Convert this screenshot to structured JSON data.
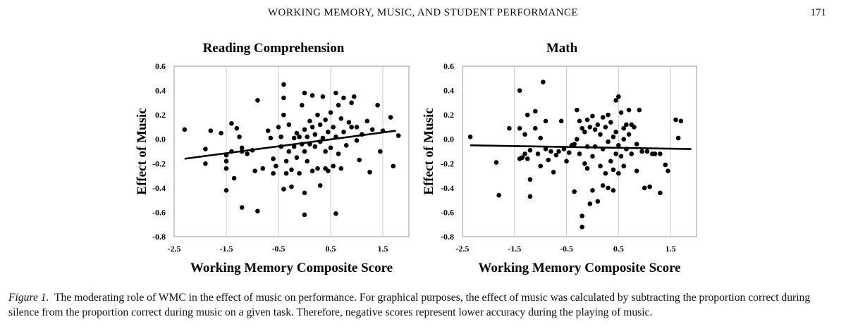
{
  "header": {
    "running_head": "WORKING MEMORY, MUSIC, AND STUDENT PERFORMANCE",
    "page_number": "171"
  },
  "caption": {
    "label": "Figure 1.",
    "text": "The moderating role of WMC in the effect of music on performance. For graphical purposes, the effect of music was calculated by subtracting the proportion correct during silence from the proportion correct during music on a given task. Therefore, negative scores represent lower accuracy during the playing of music."
  },
  "chart_data": [
    {
      "type": "scatter",
      "title": "Reading Comprehension",
      "xlabel": "Working Memory Composite Score",
      "ylabel": "Effect of Music",
      "xlim": [
        -2.5,
        2.0
      ],
      "ylim": [
        -0.8,
        0.6
      ],
      "x_ticks": [
        "-2.5",
        "-1.5",
        "-0.5",
        "0.5",
        "1.5"
      ],
      "y_ticks": [
        "0.6",
        "0.4",
        "0.2",
        "0.0",
        "-0.2",
        "-0.4",
        "-0.6",
        "-0.8"
      ],
      "grid": "vertical",
      "trendline": {
        "x": [
          -2.3,
          1.75
        ],
        "y": [
          -0.16,
          0.07
        ]
      },
      "points": [
        [
          -2.3,
          0.08
        ],
        [
          -1.9,
          -0.08
        ],
        [
          -1.9,
          -0.2
        ],
        [
          -1.8,
          0.07
        ],
        [
          -1.6,
          0.05
        ],
        [
          -1.4,
          0.13
        ],
        [
          -1.4,
          -0.1
        ],
        [
          -1.5,
          -0.13
        ],
        [
          -1.5,
          -0.18
        ],
        [
          -1.5,
          -0.24
        ],
        [
          -1.5,
          -0.42
        ],
        [
          -1.35,
          -0.32
        ],
        [
          -1.3,
          0.09
        ],
        [
          -1.25,
          0.02
        ],
        [
          -1.2,
          -0.07
        ],
        [
          -1.2,
          -0.1
        ],
        [
          -1.2,
          -0.56
        ],
        [
          -1.1,
          -0.12
        ],
        [
          -1.0,
          -0.09
        ],
        [
          -0.95,
          -0.26
        ],
        [
          -0.9,
          0.32
        ],
        [
          -0.9,
          -0.59
        ],
        [
          -0.8,
          -0.24
        ],
        [
          -0.7,
          0.07
        ],
        [
          -0.65,
          0.01
        ],
        [
          -0.6,
          -0.16
        ],
        [
          -0.6,
          -0.28
        ],
        [
          -0.55,
          -0.22
        ],
        [
          -0.5,
          0.1
        ],
        [
          -0.45,
          0.02
        ],
        [
          -0.45,
          -0.06
        ],
        [
          -0.4,
          0.45
        ],
        [
          -0.4,
          0.34
        ],
        [
          -0.4,
          0.2
        ],
        [
          -0.4,
          -0.41
        ],
        [
          -0.35,
          -0.18
        ],
        [
          -0.35,
          -0.28
        ],
        [
          -0.3,
          0.12
        ],
        [
          -0.3,
          -0.1
        ],
        [
          -0.25,
          -0.25
        ],
        [
          -0.25,
          -0.39
        ],
        [
          -0.2,
          0.01
        ],
        [
          -0.2,
          -0.06
        ],
        [
          -0.15,
          0.05
        ],
        [
          -0.15,
          -0.15
        ],
        [
          -0.1,
          0.02
        ],
        [
          -0.1,
          -0.28
        ],
        [
          -0.05,
          0.28
        ],
        [
          -0.05,
          -0.04
        ],
        [
          0.0,
          0.38
        ],
        [
          0.0,
          0.08
        ],
        [
          0.0,
          -0.1
        ],
        [
          0.0,
          -0.44
        ],
        [
          0.0,
          -0.62
        ],
        [
          0.05,
          0.02
        ],
        [
          0.05,
          -0.18
        ],
        [
          0.1,
          0.15
        ],
        [
          0.1,
          -0.04
        ],
        [
          0.15,
          0.36
        ],
        [
          0.15,
          0.1
        ],
        [
          0.15,
          -0.26
        ],
        [
          0.2,
          0.04
        ],
        [
          0.2,
          -0.06
        ],
        [
          0.25,
          0.2
        ],
        [
          0.25,
          -0.24
        ],
        [
          0.3,
          0.12
        ],
        [
          0.3,
          -0.02
        ],
        [
          0.3,
          -0.38
        ],
        [
          0.35,
          0.35
        ],
        [
          0.35,
          0.01
        ],
        [
          0.4,
          0.16
        ],
        [
          0.4,
          -0.1
        ],
        [
          0.4,
          -0.24
        ],
        [
          0.45,
          0.06
        ],
        [
          0.45,
          -0.26
        ],
        [
          0.5,
          0.22
        ],
        [
          0.5,
          -0.07
        ],
        [
          0.55,
          0.1
        ],
        [
          0.55,
          -0.22
        ],
        [
          0.6,
          0.38
        ],
        [
          0.6,
          0.02
        ],
        [
          0.6,
          -0.61
        ],
        [
          0.65,
          0.28
        ],
        [
          0.65,
          -0.12
        ],
        [
          0.7,
          0.17
        ],
        [
          0.7,
          -0.24
        ],
        [
          0.75,
          0.34
        ],
        [
          0.75,
          0.06
        ],
        [
          0.8,
          -0.05
        ],
        [
          0.85,
          0.14
        ],
        [
          0.9,
          0.3
        ],
        [
          0.9,
          0.1
        ],
        [
          0.95,
          0.35
        ],
        [
          1.0,
          0.1
        ],
        [
          1.0,
          -0.01
        ],
        [
          1.05,
          -0.17
        ],
        [
          1.1,
          0.04
        ],
        [
          1.2,
          0.15
        ],
        [
          1.25,
          -0.27
        ],
        [
          1.3,
          0.08
        ],
        [
          1.4,
          0.28
        ],
        [
          1.45,
          -0.1
        ],
        [
          1.5,
          0.07
        ],
        [
          1.65,
          0.18
        ],
        [
          1.7,
          -0.22
        ],
        [
          1.8,
          0.03
        ]
      ]
    },
    {
      "type": "scatter",
      "title": "Math",
      "xlabel": "Working Memory Composite Score",
      "ylabel": "Effect of Music",
      "xlim": [
        -2.5,
        2.0
      ],
      "ylim": [
        -0.8,
        0.6
      ],
      "x_ticks": [
        "-2.5",
        "-1.5",
        "-0.5",
        "0.5",
        "1.5"
      ],
      "y_ticks": [
        "0.6",
        "0.4",
        "0.2",
        "0.0",
        "-0.2",
        "-0.4",
        "-0.6",
        "-0.8"
      ],
      "grid": "vertical",
      "trendline": {
        "x": [
          -2.35,
          1.9
        ],
        "y": [
          -0.05,
          -0.08
        ]
      },
      "points": [
        [
          -2.35,
          0.02
        ],
        [
          -1.85,
          -0.19
        ],
        [
          -1.8,
          -0.46
        ],
        [
          -1.6,
          0.09
        ],
        [
          -1.4,
          0.4
        ],
        [
          -1.4,
          0.09
        ],
        [
          -1.4,
          -0.16
        ],
        [
          -1.35,
          -0.15
        ],
        [
          -1.3,
          0.04
        ],
        [
          -1.3,
          -0.12
        ],
        [
          -1.25,
          0.2
        ],
        [
          -1.25,
          -0.16
        ],
        [
          -1.2,
          -0.09
        ],
        [
          -1.2,
          -0.33
        ],
        [
          -1.2,
          -0.47
        ],
        [
          -1.1,
          0.23
        ],
        [
          -1.1,
          0.09
        ],
        [
          -1.05,
          -0.12
        ],
        [
          -1.0,
          0.01
        ],
        [
          -1.0,
          -0.22
        ],
        [
          -0.95,
          0.47
        ],
        [
          -0.9,
          0.15
        ],
        [
          -0.9,
          -0.08
        ],
        [
          -0.85,
          -0.17
        ],
        [
          -0.8,
          -0.1
        ],
        [
          -0.75,
          -0.27
        ],
        [
          -0.7,
          -0.13
        ],
        [
          -0.65,
          -0.1
        ],
        [
          -0.6,
          0.15
        ],
        [
          -0.55,
          -0.08
        ],
        [
          -0.5,
          -0.18
        ],
        [
          -0.45,
          -0.11
        ],
        [
          -0.4,
          -0.05
        ],
        [
          -0.35,
          -0.04
        ],
        [
          -0.35,
          -0.43
        ],
        [
          -0.3,
          0.24
        ],
        [
          -0.3,
          0.0
        ],
        [
          -0.25,
          0.15
        ],
        [
          -0.25,
          -0.12
        ],
        [
          -0.2,
          0.09
        ],
        [
          -0.2,
          -0.63
        ],
        [
          -0.2,
          -0.72
        ],
        [
          -0.15,
          0.06
        ],
        [
          -0.15,
          -0.2
        ],
        [
          -0.1,
          0.16
        ],
        [
          -0.1,
          -0.06
        ],
        [
          -0.1,
          -0.24
        ],
        [
          -0.05,
          0.1
        ],
        [
          -0.05,
          -0.53
        ],
        [
          0.0,
          0.19
        ],
        [
          0.0,
          -0.14
        ],
        [
          0.0,
          -0.42
        ],
        [
          0.05,
          0.08
        ],
        [
          0.05,
          -0.06
        ],
        [
          0.1,
          0.12
        ],
        [
          0.1,
          -0.51
        ],
        [
          0.15,
          0.04
        ],
        [
          0.15,
          -0.22
        ],
        [
          0.2,
          0.18
        ],
        [
          0.2,
          -0.08
        ],
        [
          0.2,
          -0.38
        ],
        [
          0.25,
          0.1
        ],
        [
          0.25,
          -0.28
        ],
        [
          0.3,
          0.2
        ],
        [
          0.3,
          -0.02
        ],
        [
          0.3,
          -0.4
        ],
        [
          0.35,
          0.14
        ],
        [
          0.35,
          -0.18
        ],
        [
          0.4,
          0.02
        ],
        [
          0.4,
          -0.25
        ],
        [
          0.4,
          -0.42
        ],
        [
          0.45,
          0.32
        ],
        [
          0.45,
          0.06
        ],
        [
          0.45,
          -0.12
        ],
        [
          0.5,
          0.35
        ],
        [
          0.5,
          -0.05
        ],
        [
          0.5,
          -0.28
        ],
        [
          0.55,
          0.22
        ],
        [
          0.55,
          -0.14
        ],
        [
          0.6,
          0.09
        ],
        [
          0.6,
          0.0
        ],
        [
          0.6,
          -0.22
        ],
        [
          0.65,
          0.12
        ],
        [
          0.65,
          -0.08
        ],
        [
          0.7,
          0.24
        ],
        [
          0.7,
          0.04
        ],
        [
          0.75,
          0.12
        ],
        [
          0.75,
          -0.12
        ],
        [
          0.8,
          0.1
        ],
        [
          0.85,
          -0.04
        ],
        [
          0.85,
          -0.26
        ],
        [
          0.9,
          0.24
        ],
        [
          0.95,
          -0.1
        ],
        [
          1.0,
          -0.4
        ],
        [
          1.05,
          -0.1
        ],
        [
          1.1,
          -0.39
        ],
        [
          1.15,
          -0.12
        ],
        [
          1.2,
          -0.12
        ],
        [
          1.3,
          -0.12
        ],
        [
          1.3,
          -0.44
        ],
        [
          1.4,
          -0.21
        ],
        [
          1.45,
          -0.26
        ],
        [
          1.6,
          0.16
        ],
        [
          1.65,
          0.01
        ],
        [
          1.7,
          0.15
        ]
      ]
    }
  ]
}
